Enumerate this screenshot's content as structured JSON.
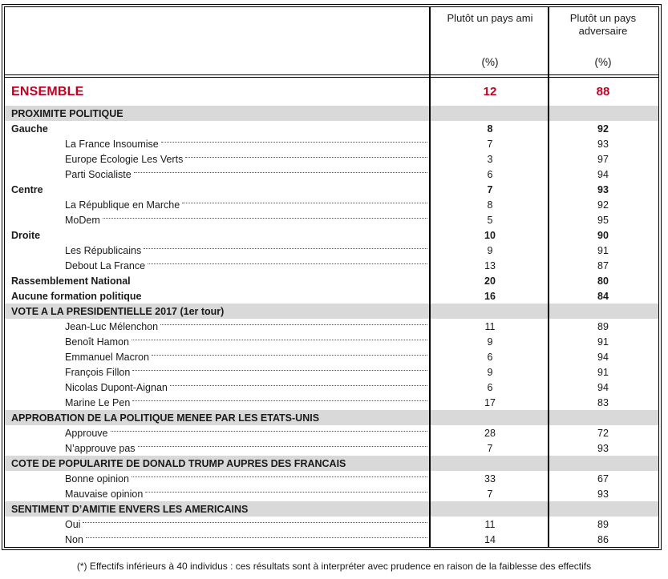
{
  "colors": {
    "accent_red": "#C00021",
    "band_gray": "#D9D9D9",
    "border": "#000000"
  },
  "table": {
    "columns": [
      {
        "title": "Plutôt un pays ami",
        "unit": "(%)"
      },
      {
        "title": "Plutôt un pays adversaire",
        "unit": "(%)"
      }
    ],
    "ensemble": {
      "label": "ENSEMBLE",
      "ami": "12",
      "adversaire": "88"
    },
    "sections": [
      {
        "title": "PROXIMITE POLITIQUE",
        "rows": [
          {
            "label": "Gauche",
            "ami": "8",
            "adversaire": "92",
            "style": "category"
          },
          {
            "label": "La France Insoumise",
            "ami": "7",
            "adversaire": "93",
            "style": "sub"
          },
          {
            "label": "Europe Écologie Les Verts",
            "ami": "3",
            "adversaire": "97",
            "style": "sub"
          },
          {
            "label": "Parti Socialiste",
            "ami": "6",
            "adversaire": "94",
            "style": "sub"
          },
          {
            "label": "Centre",
            "ami": "7",
            "adversaire": "93",
            "style": "category"
          },
          {
            "label": "La République en Marche",
            "ami": "8",
            "adversaire": "92",
            "style": "sub"
          },
          {
            "label": "MoDem",
            "ami": "5",
            "adversaire": "95",
            "style": "sub"
          },
          {
            "label": "Droite",
            "ami": "10",
            "adversaire": "90",
            "style": "category"
          },
          {
            "label": "Les Républicains",
            "ami": "9",
            "adversaire": "91",
            "style": "sub"
          },
          {
            "label": "Debout La France",
            "ami": "13",
            "adversaire": "87",
            "style": "sub"
          },
          {
            "label": "Rassemblement National",
            "ami": "20",
            "adversaire": "80",
            "style": "category"
          },
          {
            "label": "Aucune formation politique",
            "ami": "16",
            "adversaire": "84",
            "style": "category"
          }
        ]
      },
      {
        "title": "VOTE A LA PRESIDENTIELLE 2017 (1er tour)",
        "rows": [
          {
            "label": "Jean-Luc Mélenchon",
            "ami": "11",
            "adversaire": "89",
            "style": "sub"
          },
          {
            "label": "Benoît Hamon",
            "ami": "9",
            "adversaire": "91",
            "style": "sub"
          },
          {
            "label": "Emmanuel Macron",
            "ami": "6",
            "adversaire": "94",
            "style": "sub"
          },
          {
            "label": "François Fillon",
            "ami": "9",
            "adversaire": "91",
            "style": "sub"
          },
          {
            "label": "Nicolas Dupont-Aignan",
            "ami": "6",
            "adversaire": "94",
            "style": "sub"
          },
          {
            "label": "Marine Le Pen",
            "ami": "17",
            "adversaire": "83",
            "style": "sub"
          }
        ]
      },
      {
        "title": "APPROBATION DE LA POLITIQUE MENEE PAR LES ETATS-UNIS",
        "rows": [
          {
            "label": "Approuve",
            "ami": "28",
            "adversaire": "72",
            "style": "sub"
          },
          {
            "label": "N’approuve pas",
            "ami": "7",
            "adversaire": "93",
            "style": "sub"
          }
        ]
      },
      {
        "title": "COTE DE POPULARITE DE DONALD TRUMP AUPRES DES FRANCAIS",
        "rows": [
          {
            "label": "Bonne opinion",
            "ami": "33",
            "adversaire": "67",
            "style": "sub"
          },
          {
            "label": "Mauvaise opinion",
            "ami": "7",
            "adversaire": "93",
            "style": "sub"
          }
        ]
      },
      {
        "title": "SENTIMENT D’AMITIE ENVERS LES AMERICAINS",
        "rows": [
          {
            "label": "Oui",
            "ami": "11",
            "adversaire": "89",
            "style": "sub"
          },
          {
            "label": "Non",
            "ami": "14",
            "adversaire": "86",
            "style": "sub"
          }
        ]
      }
    ]
  },
  "page": {
    "footnote": "(*) Effectifs inférieurs à 40 individus : ces résultats sont à interpréter avec prudence en raison de la faiblesse des effectifs"
  }
}
